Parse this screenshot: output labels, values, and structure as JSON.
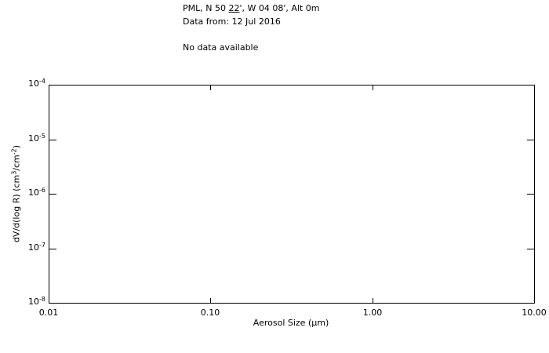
{
  "header": {
    "site_prefix": "PML, N 50 ",
    "site_underlined": "22",
    "site_suffix": "', W 04 08', Alt 0m",
    "date_line": "Data from: 12 Jul 2016",
    "status_line": "No data available"
  },
  "chart_data": {
    "type": "line",
    "title": "",
    "xlabel": "Aerosol Size (μm)",
    "ylabel_text": "dV/d(log R) (cm3/cm-2)",
    "ylabel_parts": [
      {
        "text": "dV/d(log R) (cm"
      },
      {
        "sup": "3"
      },
      {
        "text": "/cm"
      },
      {
        "sup": "-2"
      },
      {
        "text": ")"
      }
    ],
    "x_scale": "log",
    "y_scale": "log",
    "xlim": [
      0.01,
      10.0
    ],
    "ylim": [
      1e-08,
      0.0001
    ],
    "x_ticks": [
      {
        "value": 0.01,
        "label": "0.01"
      },
      {
        "value": 0.1,
        "label": "0.10"
      },
      {
        "value": 1.0,
        "label": "1.00"
      },
      {
        "value": 10.0,
        "label": "10.00"
      }
    ],
    "y_ticks": [
      {
        "value": 0.0001,
        "base": "10",
        "exp": "-4"
      },
      {
        "value": 1e-05,
        "base": "10",
        "exp": "-5"
      },
      {
        "value": 1e-06,
        "base": "10",
        "exp": "-6"
      },
      {
        "value": 1e-07,
        "base": "10",
        "exp": "-7"
      },
      {
        "value": 1e-08,
        "base": "10",
        "exp": "-8"
      }
    ],
    "grid": false,
    "legend": null,
    "series": [],
    "no_data_message": "No data available",
    "colors": {
      "axis": "#000000",
      "background": "#ffffff",
      "text": "#000000"
    }
  }
}
